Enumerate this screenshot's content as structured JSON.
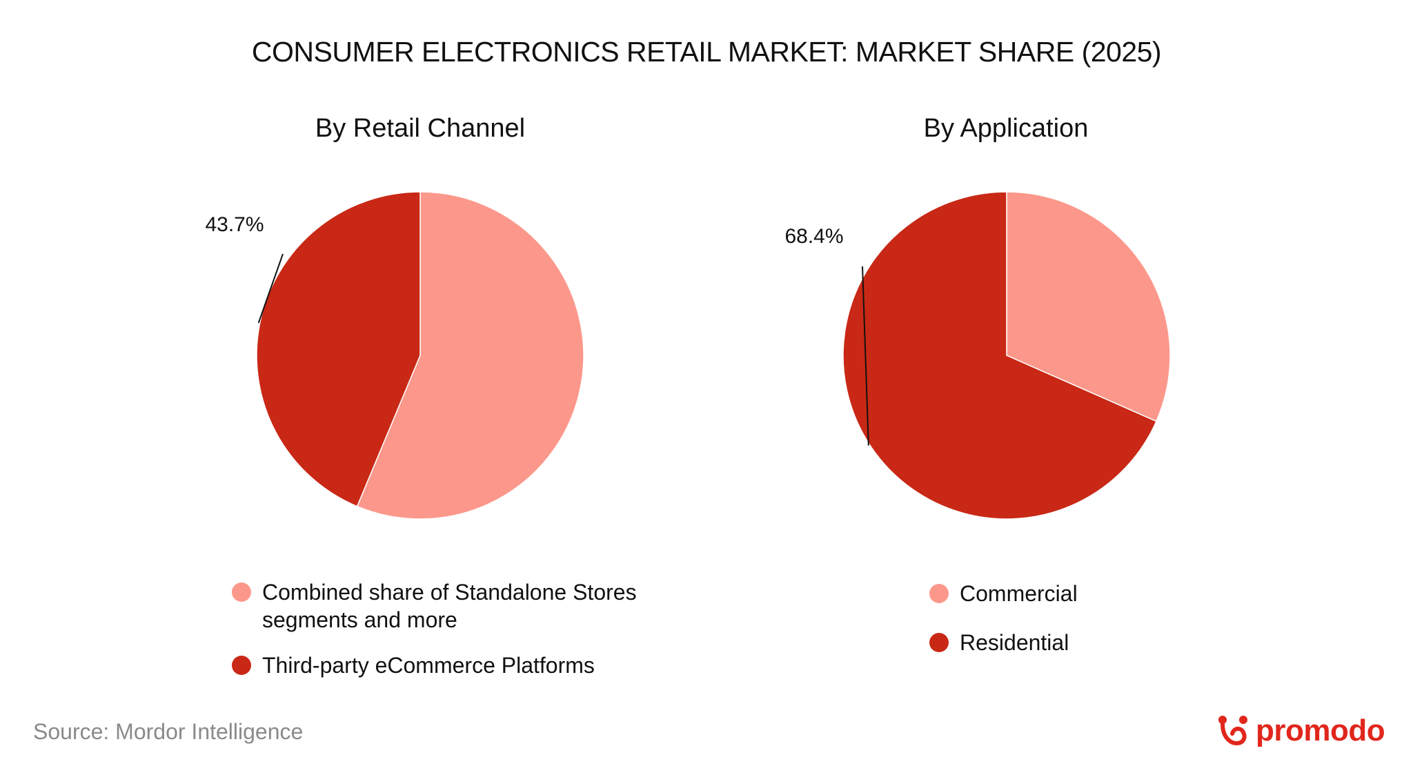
{
  "title": "CONSUMER ELECTRONICS RETAIL MARKET: MARKET SHARE (2025)",
  "colors": {
    "light": "#fc988b",
    "dark": "#c82815",
    "brand": "#e1261c"
  },
  "chart_data": [
    {
      "type": "pie",
      "title": "By Retail Channel",
      "slices": [
        {
          "label": "Combined share of Standalone Stores segments and more",
          "value": 56.3,
          "color": "#fc988b"
        },
        {
          "label": "Third-party eCommerce Platforms",
          "value": 43.7,
          "color": "#c82815",
          "data_label": "43.7%"
        }
      ],
      "legend_placement": "bottom"
    },
    {
      "type": "pie",
      "title": "By Application",
      "slices": [
        {
          "label": "Commercial",
          "value": 31.6,
          "color": "#fc988b"
        },
        {
          "label": "Residential",
          "value": 68.4,
          "color": "#c82815",
          "data_label": "68.4%"
        }
      ],
      "legend_placement": "bottom"
    }
  ],
  "footer": {
    "source": "Source: Mordor Intelligence",
    "logo_text": "promodo",
    "logo_icon": "promodo-logo-icon"
  }
}
